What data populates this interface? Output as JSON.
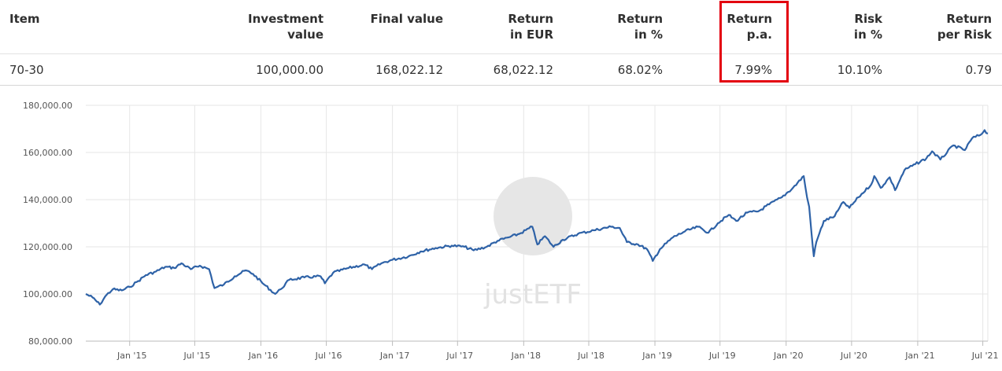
{
  "table": {
    "headers": [
      {
        "key": "item",
        "label": "Item"
      },
      {
        "key": "investment",
        "label": "Investment\nvalue"
      },
      {
        "key": "final",
        "label": "Final value"
      },
      {
        "key": "ret_eur",
        "label": "Return\nin EUR"
      },
      {
        "key": "ret_pct",
        "label": "Return\nin %"
      },
      {
        "key": "ret_pa",
        "label": "Return\np.a."
      },
      {
        "key": "risk",
        "label": "Risk\nin %"
      },
      {
        "key": "rpr",
        "label": "Return\nper Risk"
      }
    ],
    "row": {
      "item": "70-30",
      "investment": "100,000.00",
      "final": "168,022.12",
      "ret_eur": "68,022.12",
      "ret_pct": "68.02%",
      "ret_pa": "7.99%",
      "risk": "10.10%",
      "rpr": "0.79"
    },
    "highlight_column": "ret_pa",
    "highlight_color": "#e3000f"
  },
  "chart_data": {
    "type": "line",
    "watermark": "justETF",
    "line_color": "#2e62a7",
    "grid": true,
    "ylim": [
      80000,
      180000
    ],
    "yticks": [
      "80,000.00",
      "100,000.00",
      "120,000.00",
      "140,000.00",
      "160,000.00",
      "180,000.00"
    ],
    "xticks": [
      "Jan '15",
      "Jul '15",
      "Jan '16",
      "Jul '16",
      "Jan '17",
      "Jul '17",
      "Jan '18",
      "Jul '18",
      "Jan '19",
      "Jul '19",
      "Jan '20",
      "Jul '20",
      "Jan '21",
      "Jul '21"
    ],
    "xlim": [
      "2014-09-01",
      "2021-07-15"
    ],
    "series": [
      {
        "points": [
          [
            "2014-09-01",
            100000
          ],
          [
            "2014-09-20",
            98500
          ],
          [
            "2014-10-10",
            95500
          ],
          [
            "2014-10-25",
            99000
          ],
          [
            "2014-11-15",
            102000
          ],
          [
            "2014-12-10",
            101500
          ],
          [
            "2015-01-01",
            103000
          ],
          [
            "2015-01-25",
            105500
          ],
          [
            "2015-02-15",
            108000
          ],
          [
            "2015-03-15",
            109500
          ],
          [
            "2015-04-10",
            111500
          ],
          [
            "2015-05-05",
            111000
          ],
          [
            "2015-05-25",
            113000
          ],
          [
            "2015-06-20",
            110500
          ],
          [
            "2015-07-15",
            112000
          ],
          [
            "2015-08-10",
            110500
          ],
          [
            "2015-08-25",
            102500
          ],
          [
            "2015-09-20",
            104000
          ],
          [
            "2015-10-20",
            107500
          ],
          [
            "2015-11-20",
            110000
          ],
          [
            "2015-12-10",
            108500
          ],
          [
            "2016-01-10",
            104000
          ],
          [
            "2016-02-10",
            100000
          ],
          [
            "2016-02-25",
            102000
          ],
          [
            "2016-03-20",
            106000
          ],
          [
            "2016-05-01",
            107000
          ],
          [
            "2016-06-15",
            107500
          ],
          [
            "2016-06-27",
            104500
          ],
          [
            "2016-07-20",
            109000
          ],
          [
            "2016-09-01",
            111000
          ],
          [
            "2016-10-15",
            112500
          ],
          [
            "2016-11-05",
            110500
          ],
          [
            "2016-12-01",
            113000
          ],
          [
            "2017-01-01",
            114500
          ],
          [
            "2017-02-15",
            116000
          ],
          [
            "2017-03-20",
            118000
          ],
          [
            "2017-05-01",
            119500
          ],
          [
            "2017-06-15",
            120500
          ],
          [
            "2017-07-20",
            120000
          ],
          [
            "2017-08-15",
            118500
          ],
          [
            "2017-09-20",
            120000
          ],
          [
            "2017-10-20",
            122500
          ],
          [
            "2017-11-20",
            124000
          ],
          [
            "2017-12-20",
            125500
          ],
          [
            "2018-01-25",
            128500
          ],
          [
            "2018-02-08",
            121000
          ],
          [
            "2018-03-01",
            124500
          ],
          [
            "2018-03-25",
            120000
          ],
          [
            "2018-04-20",
            123000
          ],
          [
            "2018-06-01",
            125500
          ],
          [
            "2018-07-15",
            127000
          ],
          [
            "2018-09-01",
            128500
          ],
          [
            "2018-09-25",
            128000
          ],
          [
            "2018-10-15",
            122000
          ],
          [
            "2018-11-15",
            121000
          ],
          [
            "2018-12-10",
            119000
          ],
          [
            "2018-12-26",
            114000
          ],
          [
            "2019-01-15",
            119000
          ],
          [
            "2019-02-20",
            124000
          ],
          [
            "2019-03-25",
            126500
          ],
          [
            "2019-05-01",
            128500
          ],
          [
            "2019-05-30",
            126000
          ],
          [
            "2019-06-25",
            130000
          ],
          [
            "2019-07-25",
            133500
          ],
          [
            "2019-08-15",
            131000
          ],
          [
            "2019-09-15",
            134500
          ],
          [
            "2019-10-15",
            135000
          ],
          [
            "2019-11-15",
            138000
          ],
          [
            "2019-12-20",
            141000
          ],
          [
            "2020-01-20",
            145000
          ],
          [
            "2020-02-19",
            150000
          ],
          [
            "2020-02-28",
            141000
          ],
          [
            "2020-03-05",
            137000
          ],
          [
            "2020-03-12",
            125000
          ],
          [
            "2020-03-18",
            116000
          ],
          [
            "2020-03-25",
            122000
          ],
          [
            "2020-04-15",
            131000
          ],
          [
            "2020-05-15",
            133000
          ],
          [
            "2020-06-08",
            139000
          ],
          [
            "2020-06-25",
            136500
          ],
          [
            "2020-07-20",
            141000
          ],
          [
            "2020-08-25",
            146500
          ],
          [
            "2020-09-02",
            150000
          ],
          [
            "2020-09-20",
            145000
          ],
          [
            "2020-10-15",
            149500
          ],
          [
            "2020-10-30",
            144000
          ],
          [
            "2020-11-25",
            152500
          ],
          [
            "2020-12-25",
            155000
          ],
          [
            "2021-01-25",
            157500
          ],
          [
            "2021-02-10",
            160500
          ],
          [
            "2021-03-05",
            157000
          ],
          [
            "2021-04-10",
            163000
          ],
          [
            "2021-05-12",
            161000
          ],
          [
            "2021-06-01",
            166000
          ],
          [
            "2021-06-25",
            167500
          ],
          [
            "2021-07-06",
            169500
          ],
          [
            "2021-07-15",
            168022
          ]
        ]
      }
    ]
  }
}
